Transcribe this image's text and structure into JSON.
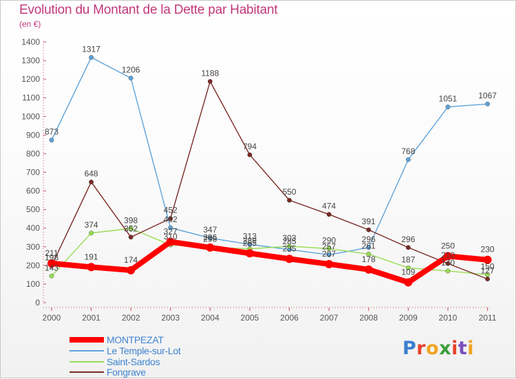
{
  "title": "Evolution du Montant de la Dette par Habitant",
  "subtitle": "(en €)",
  "logo": {
    "text": "Proxiti",
    "letter_colors": [
      "#3a7fd0",
      "#e8412c",
      "#f0a422",
      "#3a9e3a",
      "#e8412c",
      "#7a4fbf",
      "#f0a422"
    ]
  },
  "chart_data": {
    "type": "line",
    "x": [
      "2000",
      "2001",
      "2002",
      "2003",
      "2004",
      "2005",
      "2006",
      "2007",
      "2008",
      "2009",
      "2010",
      "2011"
    ],
    "ylim": [
      0,
      1400
    ],
    "yticks": [
      0,
      100,
      200,
      300,
      400,
      500,
      600,
      700,
      800,
      900,
      1000,
      1100,
      1200,
      1300,
      1400
    ],
    "grid": false,
    "legend_position": "bottom-left",
    "series": [
      {
        "name": "MONTPEZAT",
        "color": "#ff0000",
        "values": [
          211,
          191,
          174,
          327,
          296,
          265,
          235,
          207,
          178,
          109,
          250,
          230
        ],
        "labels": [
          "211",
          "191",
          "174",
          "327",
          "296",
          "265",
          "235",
          "207",
          "178",
          "109",
          "250",
          "230"
        ]
      },
      {
        "name": "Le Temple-sur-Lot",
        "color": "#5ea3d9",
        "values": [
          873,
          1317,
          1206,
          402,
          347,
          313,
          285,
          257,
          296,
          768,
          1051,
          1067
        ],
        "labels": [
          "873",
          "1317",
          "1206",
          "402",
          "347",
          "313",
          "285",
          "257",
          "296",
          "768",
          "1051",
          "1067"
        ]
      },
      {
        "name": "Saint-Sardos",
        "color": "#99dd55",
        "values": [
          143,
          374,
          398,
          310,
          298,
          289,
          303,
          290,
          261,
          187,
          170,
          150
        ],
        "labels": [
          "143",
          "374",
          "398",
          "310",
          "298",
          "289",
          "303",
          "290",
          "261",
          "187",
          "170",
          "150"
        ]
      },
      {
        "name": "Fongrave",
        "color": "#7a2a26",
        "values": [
          198,
          648,
          352,
          452,
          1188,
          794,
          550,
          474,
          391,
          296,
          210,
          127
        ],
        "labels": [
          "198",
          "648",
          "352",
          "452",
          "1188",
          "794",
          "550",
          "474",
          "391",
          "296",
          "210",
          "127"
        ]
      }
    ]
  }
}
